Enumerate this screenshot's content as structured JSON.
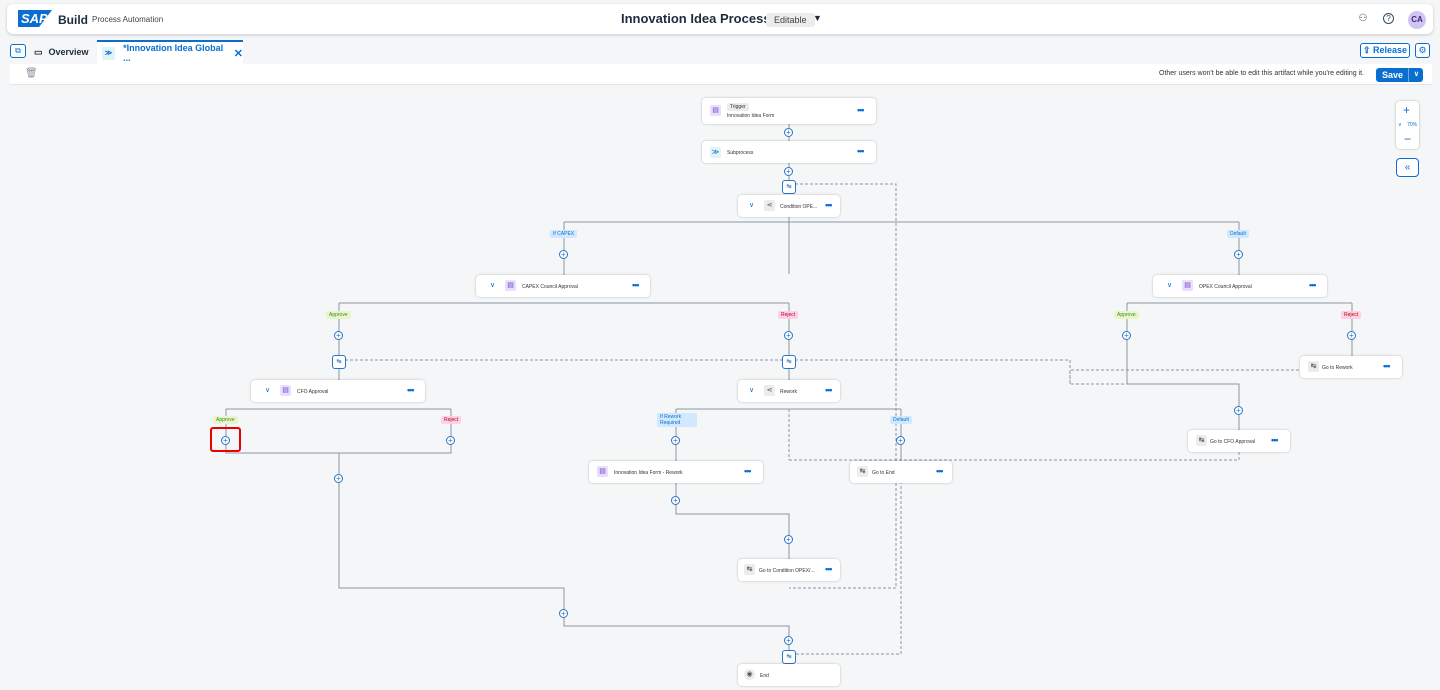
{
  "shell": {
    "logo": "SAP",
    "product": "Build",
    "product_sub": "Process Automation",
    "title": "Innovation Idea Process",
    "status_badge": "Editable",
    "avatar": "CA"
  },
  "tabs": [
    {
      "label": "Overview",
      "icon": "folder-icon"
    },
    {
      "label": "*Innovation Idea Global ...",
      "icon": "process-icon"
    }
  ],
  "actions": {
    "release": "Release",
    "save": "Save"
  },
  "toolbar": {
    "note": "Other users won't be able to edit this artifact while you're editing it."
  },
  "zoom": {
    "level": "70%"
  },
  "nodes": {
    "trigger_tag": "Trigger",
    "trigger": "Innovation Idea Form",
    "subprocess": "Subprocess",
    "condition": "Condition OPE...",
    "capex": "CAPEX Council Approval",
    "opex": "OPEX Council Approval",
    "cfo": "CFO Approval",
    "rework": "Rework",
    "goto_rework": "Go to Rework",
    "goto_cfo": "Go to CFO Approval",
    "form_rework": "Innovation Idea Form - Rework",
    "goto_end": "Go to End",
    "goto_condition": "Go to Condition OPEX/...",
    "end": "End"
  },
  "branches": {
    "if_capex": "If CAPEX",
    "default": "Default",
    "approve": "Approve",
    "reject": "Reject",
    "if_rework": "If Rework Required"
  },
  "colors": {
    "accent": "#0a6ed1",
    "highlight": "#e00000"
  }
}
